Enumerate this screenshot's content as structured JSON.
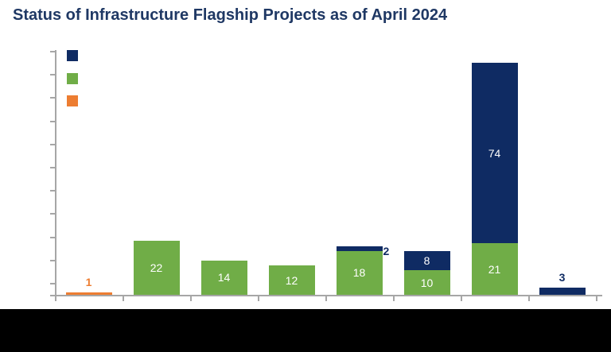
{
  "chart_data": {
    "type": "stacked-bar",
    "title": "Status of Infrastructure Flagship Projects as of April 2024",
    "categories": [
      "",
      "",
      "",
      "",
      "",
      "",
      "",
      ""
    ],
    "series": [
      {
        "id": "navy",
        "color": "#0F2B63",
        "values": [
          0,
          0,
          0,
          0,
          2,
          8,
          74,
          3
        ]
      },
      {
        "id": "green",
        "color": "#70AD47",
        "values": [
          0,
          22,
          14,
          12,
          18,
          10,
          21,
          0
        ]
      },
      {
        "id": "orange",
        "color": "#ED7D31",
        "values": [
          1,
          0,
          0,
          0,
          0,
          0,
          0,
          0
        ]
      }
    ],
    "stack_order_bottom_to_top": [
      "orange",
      "green",
      "navy"
    ],
    "data_labels": {
      "inside": [
        {
          "category_index": 1,
          "series": "green",
          "text": "22"
        },
        {
          "category_index": 2,
          "series": "green",
          "text": "14"
        },
        {
          "category_index": 3,
          "series": "green",
          "text": "12"
        },
        {
          "category_index": 4,
          "series": "green",
          "text": "18"
        },
        {
          "category_index": 5,
          "series": "green",
          "text": "10"
        },
        {
          "category_index": 5,
          "series": "navy",
          "text": "8"
        },
        {
          "category_index": 6,
          "series": "green",
          "text": "21"
        },
        {
          "category_index": 6,
          "series": "navy",
          "text": "74"
        }
      ],
      "outside": [
        {
          "category_index": 0,
          "series": "orange",
          "text": "1",
          "position": "above",
          "color": "#ED7D31"
        },
        {
          "category_index": 4,
          "series": "navy",
          "text": "2",
          "position": "right-of-top",
          "color": "#0F2B63"
        },
        {
          "category_index": 7,
          "series": "navy",
          "text": "3",
          "position": "above",
          "color": "#0F2B63"
        }
      ]
    },
    "legend": {
      "position": "top-left",
      "entries": [
        {
          "color": "#0F2B63",
          "label": ""
        },
        {
          "color": "#70AD47",
          "label": ""
        },
        {
          "color": "#ED7D31",
          "label": ""
        }
      ]
    },
    "axes": {
      "y_axis_labels_visible": false,
      "x_axis_labels_visible": false,
      "gridlines": false,
      "y_tick_count": 11,
      "x_tick_count": 9
    },
    "colors": {
      "title": "#1F3864",
      "axis": "#A6A6A6",
      "inside_label": "#FFFFFF",
      "bottom_band": "#000000"
    }
  }
}
